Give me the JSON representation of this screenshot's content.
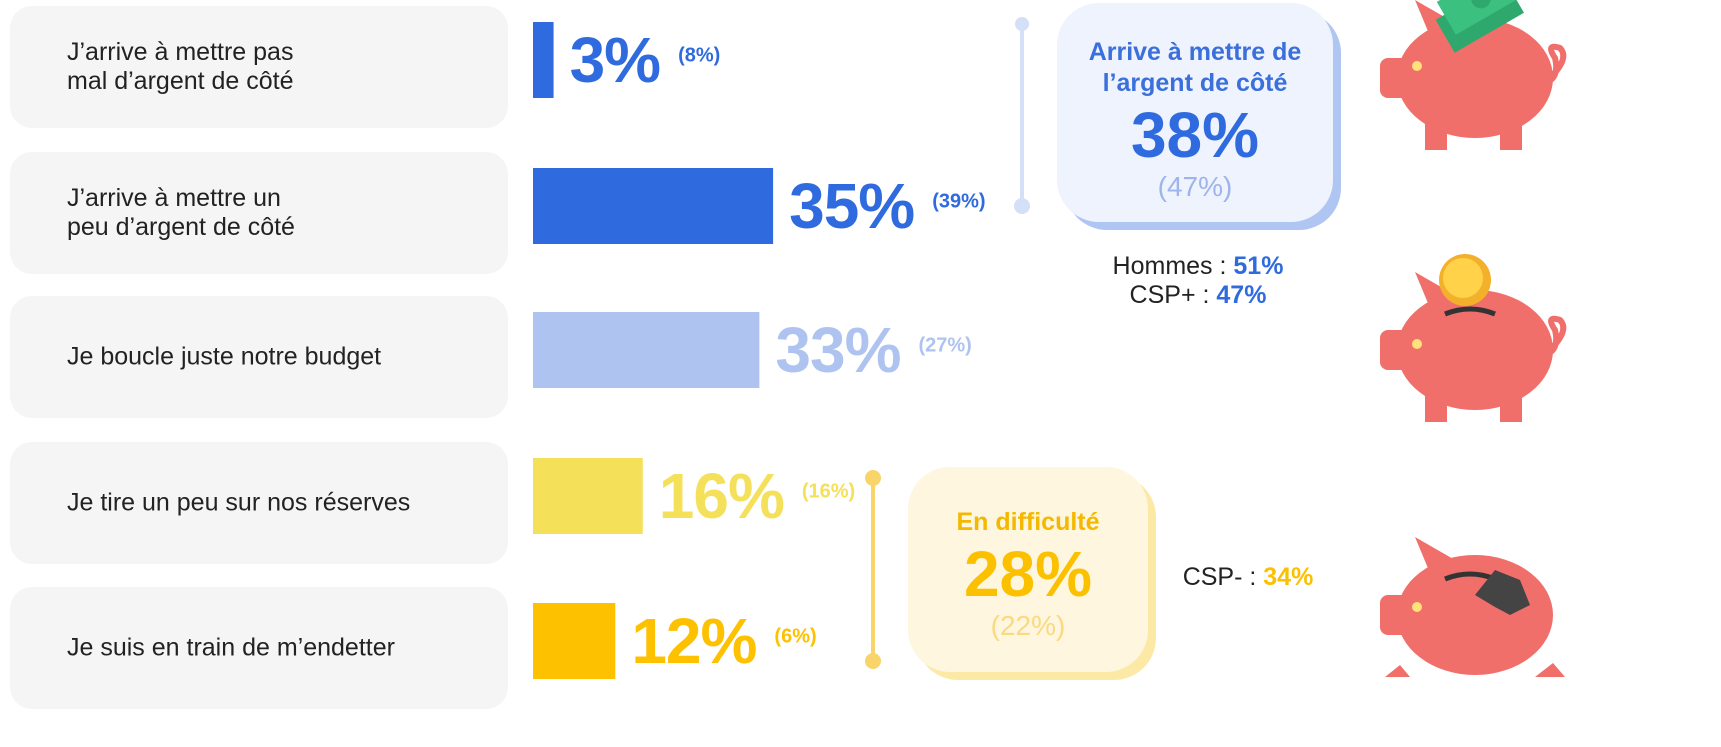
{
  "chart_data": {
    "type": "bar",
    "orientation": "horizontal",
    "categories": [
      "J’arrive à mettre pas\nmal d’argent de côté",
      "J’arrive à mettre un\npeu d’argent de côté",
      "Je boucle juste notre budget",
      "Je tire un peu sur nos réserves",
      "Je suis en train de m’endetter"
    ],
    "values": [
      3,
      35,
      33,
      16,
      12
    ],
    "value_labels": [
      "3%",
      "35%",
      "33%",
      "16%",
      "12%"
    ],
    "previous_labels": [
      "(8%)",
      "(39%)",
      "(27%)",
      "(16%)",
      "(6%)"
    ],
    "colors": [
      "#2f6bdf",
      "#2f6bdf",
      "#aec3f0",
      "#f5e05a",
      "#fdc100"
    ]
  },
  "groups": [
    {
      "title": "Arrive à mettre de\nl’argent de côté",
      "value": "38%",
      "previous": "(47%)",
      "details": [
        {
          "label": "Hommes :",
          "value": "51%"
        },
        {
          "label": "CSP+ :",
          "value": "47%"
        }
      ]
    },
    {
      "title": "En difficulté",
      "value": "28%",
      "previous": "(22%)",
      "details": [
        {
          "label": "CSP- :",
          "value": "34%"
        }
      ]
    }
  ]
}
